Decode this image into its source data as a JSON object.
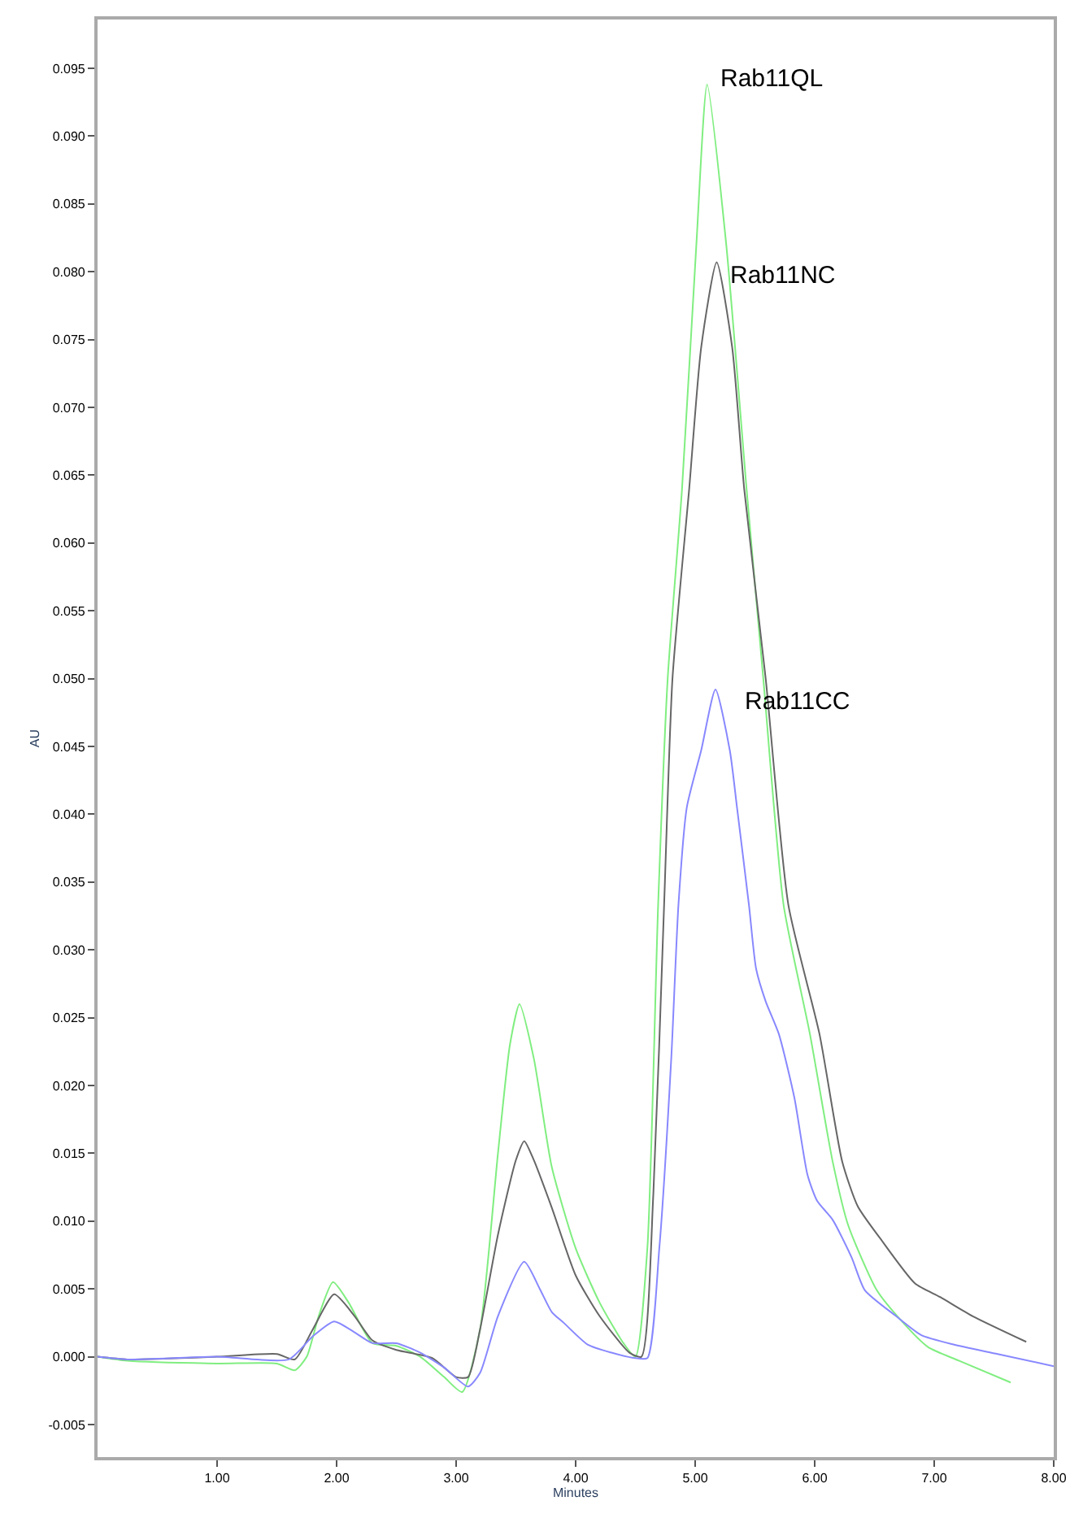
{
  "chart_data": {
    "type": "line",
    "xlabel": "Minutes",
    "ylabel": "AU",
    "xlim": [
      0,
      8
    ],
    "ylim": [
      -0.0074,
      0.0986
    ],
    "xticks": [
      {
        "value": 1,
        "label": "1.00"
      },
      {
        "value": 2,
        "label": "2.00"
      },
      {
        "value": 3,
        "label": "3.00"
      },
      {
        "value": 4,
        "label": "4.00"
      },
      {
        "value": 5,
        "label": "5.00"
      },
      {
        "value": 6,
        "label": "6.00"
      },
      {
        "value": 7,
        "label": "7.00"
      },
      {
        "value": 8,
        "label": "8.00"
      }
    ],
    "yticks": [
      {
        "value": -0.005,
        "label": "-0.005"
      },
      {
        "value": 0,
        "label": "0.000"
      },
      {
        "value": 0.005,
        "label": "0.005"
      },
      {
        "value": 0.01,
        "label": "0.010"
      },
      {
        "value": 0.015,
        "label": "0.015"
      },
      {
        "value": 0.02,
        "label": "0.020"
      },
      {
        "value": 0.025,
        "label": "0.025"
      },
      {
        "value": 0.03,
        "label": "0.030"
      },
      {
        "value": 0.035,
        "label": "0.035"
      },
      {
        "value": 0.04,
        "label": "0.040"
      },
      {
        "value": 0.045,
        "label": "0.045"
      },
      {
        "value": 0.05,
        "label": "0.050"
      },
      {
        "value": 0.055,
        "label": "0.055"
      },
      {
        "value": 0.06,
        "label": "0.060"
      },
      {
        "value": 0.065,
        "label": "0.065"
      },
      {
        "value": 0.07,
        "label": "0.070"
      },
      {
        "value": 0.075,
        "label": "0.075"
      },
      {
        "value": 0.08,
        "label": "0.080"
      },
      {
        "value": 0.085,
        "label": "0.085"
      },
      {
        "value": 0.09,
        "label": "0.090"
      },
      {
        "value": 0.095,
        "label": "0.095"
      }
    ],
    "legend": false,
    "marker": "none",
    "line_style": "solid",
    "series": [
      {
        "name": "Rab11QL",
        "color": "#80ee80",
        "x": [
          0,
          0.25,
          1.0,
          1.5,
          1.65,
          1.75,
          1.85,
          1.97,
          2.1,
          2.3,
          2.5,
          2.7,
          2.9,
          3.05,
          3.2,
          3.35,
          3.45,
          3.53,
          3.65,
          3.8,
          4.0,
          4.2,
          4.4,
          4.5,
          4.6,
          4.69,
          4.77,
          4.89,
          5.01,
          5.1,
          5.26,
          5.43,
          5.57,
          5.74,
          5.96,
          6.15,
          6.28,
          6.52,
          6.73,
          6.95,
          7.21,
          7.64
        ],
        "values": [
          0.0,
          -0.0003,
          -0.0005,
          -0.0005,
          -0.001,
          0.0,
          0.003,
          0.0055,
          0.004,
          0.001,
          0.0008,
          0.0,
          -0.0015,
          -0.0026,
          0.002,
          0.015,
          0.023,
          0.026,
          0.022,
          0.014,
          0.008,
          0.004,
          0.001,
          0.0,
          0.008,
          0.0333,
          0.05,
          0.064,
          0.082,
          0.0938,
          0.082,
          0.064,
          0.05,
          0.0333,
          0.0238,
          0.0144,
          0.0097,
          0.0049,
          0.0026,
          0.0007,
          -0.0003,
          -0.0019
        ]
      },
      {
        "name": "Rab11NC",
        "color": "#666666",
        "x": [
          0,
          0.25,
          1.0,
          1.5,
          1.65,
          1.8,
          1.98,
          2.15,
          2.3,
          2.5,
          2.8,
          3.0,
          3.1,
          3.2,
          3.35,
          3.5,
          3.57,
          3.65,
          3.8,
          4.0,
          4.2,
          4.45,
          4.55,
          4.65,
          4.74,
          4.81,
          4.95,
          5.05,
          5.18,
          5.31,
          5.41,
          5.59,
          5.78,
          6.04,
          6.23,
          6.36,
          6.55,
          6.84,
          7.05,
          7.32,
          7.77
        ],
        "values": [
          0.0,
          -0.0002,
          0.0,
          0.0002,
          -0.0002,
          0.002,
          0.0046,
          0.003,
          0.0012,
          0.0005,
          -0.0001,
          -0.0015,
          -0.0015,
          0.002,
          0.009,
          0.0145,
          0.0159,
          0.0145,
          0.011,
          0.006,
          0.003,
          0.0003,
          0.0,
          0.012,
          0.0333,
          0.05,
          0.064,
          0.0744,
          0.0807,
          0.0744,
          0.064,
          0.05,
          0.0333,
          0.0238,
          0.0144,
          0.0111,
          0.0087,
          0.0054,
          0.0044,
          0.003,
          0.0011
        ]
      },
      {
        "name": "Rab11CC",
        "color": "#8888ff",
        "x": [
          0,
          0.25,
          1.0,
          1.6,
          1.8,
          1.98,
          2.15,
          2.3,
          2.5,
          2.7,
          2.9,
          3.1,
          3.2,
          3.35,
          3.57,
          3.7,
          3.8,
          3.9,
          4.1,
          4.3,
          4.5,
          4.6,
          4.7,
          4.8,
          4.86,
          4.93,
          5.05,
          5.17,
          5.29,
          5.35,
          5.45,
          5.51,
          5.59,
          5.7,
          5.83,
          5.94,
          6.02,
          6.15,
          6.31,
          6.42,
          6.68,
          6.89,
          7.16,
          7.53,
          8.0
        ],
        "values": [
          0.0,
          -0.0002,
          0.0,
          -0.0002,
          0.0015,
          0.0026,
          0.0018,
          0.001,
          0.001,
          0.0003,
          -0.0008,
          -0.0022,
          -0.0012,
          0.003,
          0.007,
          0.005,
          0.0033,
          0.0025,
          0.0009,
          0.0003,
          -0.0001,
          -0.0001,
          0.008,
          0.022,
          0.0333,
          0.0405,
          0.0447,
          0.0492,
          0.0447,
          0.0405,
          0.0333,
          0.0286,
          0.0262,
          0.0238,
          0.0191,
          0.0134,
          0.0115,
          0.0101,
          0.0073,
          0.0049,
          0.003,
          0.0016,
          0.0009,
          0.0002,
          -0.0007
        ]
      }
    ]
  }
}
